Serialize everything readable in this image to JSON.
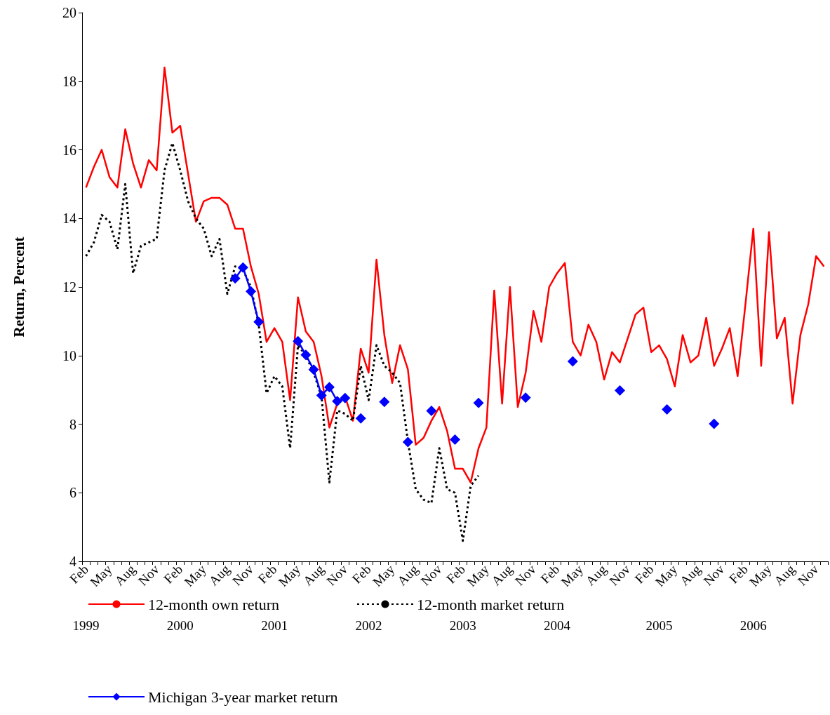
{
  "chart_data": {
    "type": "line",
    "ylabel": "Return, Percent",
    "categories": [
      "Feb",
      null,
      null,
      "May",
      null,
      null,
      "Aug",
      null,
      null,
      "Nov",
      null,
      null,
      "Feb",
      null,
      null,
      "May",
      null,
      null,
      "Aug",
      null,
      null,
      "Nov",
      null,
      null,
      "Feb",
      null,
      null,
      "May",
      null,
      null,
      "Aug",
      null,
      null,
      "Nov",
      null,
      null,
      "Feb",
      null,
      null,
      "May",
      null,
      null,
      "Aug",
      null,
      null,
      "Nov",
      null,
      null,
      "Feb",
      null,
      null,
      "May",
      null,
      null,
      "Aug",
      null,
      null,
      "Nov",
      null,
      null,
      "Feb",
      null,
      null,
      "May",
      null,
      null,
      "Aug",
      null,
      null,
      "Nov",
      null,
      null,
      "Feb",
      null,
      null,
      "May",
      null,
      null,
      "Aug",
      null,
      null,
      "Nov",
      null,
      null,
      "Feb",
      null,
      null,
      "May",
      null,
      null,
      "Aug",
      null,
      null,
      "Nov",
      null
    ],
    "ylim": [
      4,
      20
    ],
    "yticks": [
      4,
      6,
      8,
      10,
      12,
      14,
      16,
      18,
      20
    ],
    "grid": false,
    "legend": "bottom",
    "annotations": [
      "1999",
      "2000",
      "2001",
      "2002",
      "2003",
      "2004",
      "2005",
      "2006"
    ],
    "series": [
      {
        "name": "12-month own return",
        "color": "#ff0000",
        "marker": "none",
        "line_style": "solid",
        "values": [
          14.9,
          15.5,
          16.0,
          15.2,
          14.9,
          16.6,
          15.6,
          14.9,
          15.7,
          15.4,
          18.4,
          16.5,
          16.7,
          15.3,
          13.9,
          14.5,
          14.6,
          14.6,
          14.4,
          13.7,
          13.7,
          12.6,
          11.8,
          10.4,
          10.8,
          10.4,
          8.7,
          11.7,
          10.7,
          10.4,
          9.4,
          7.9,
          8.6,
          8.8,
          8.1,
          10.2,
          9.5,
          12.8,
          10.6,
          9.2,
          10.3,
          9.6,
          7.4,
          7.6,
          8.1,
          8.5,
          7.8,
          6.7,
          6.7,
          6.3,
          7.3,
          7.9,
          11.9,
          8.6,
          12.0,
          8.5,
          9.5,
          11.3,
          10.4,
          12.0,
          12.4,
          12.7,
          10.4,
          10.0,
          10.9,
          10.4,
          9.3,
          10.1,
          9.8,
          10.5,
          11.2,
          11.4,
          10.1,
          10.3,
          9.9,
          9.1,
          10.6,
          9.8,
          10.0,
          11.1,
          9.7,
          10.2,
          10.8,
          9.4,
          11.5,
          13.7,
          9.7,
          13.6,
          10.5,
          11.1,
          8.6,
          10.6,
          11.5,
          12.9,
          12.6
        ]
      },
      {
        "name": "12-month market return",
        "color": "#000000",
        "marker": "none",
        "line_style": "dotted",
        "values": [
          12.9,
          13.3,
          14.1,
          13.9,
          13.1,
          15.0,
          12.4,
          13.2,
          13.3,
          13.4,
          15.4,
          16.2,
          15.4,
          14.5,
          14.0,
          13.7,
          12.9,
          13.4,
          11.8,
          12.6,
          12.5,
          12.0,
          10.9,
          8.9,
          9.4,
          9.1,
          7.3,
          10.3,
          10.0,
          9.5,
          8.8,
          6.3,
          8.4,
          8.3,
          8.1,
          9.7,
          8.7,
          10.3,
          9.7,
          9.5,
          9.2,
          7.5,
          6.1,
          5.8,
          5.7,
          7.3,
          6.1,
          6.0,
          4.6,
          6.2,
          6.5,
          null,
          null,
          null,
          null,
          null,
          null,
          null,
          null,
          null,
          null,
          null,
          null,
          null,
          null,
          null,
          null,
          null,
          null,
          null,
          null,
          null,
          null,
          null,
          null,
          null,
          null,
          null,
          null,
          null,
          null,
          null,
          null,
          null,
          null,
          null,
          null,
          null,
          null,
          null,
          null,
          null,
          null,
          null,
          null
        ]
      },
      {
        "name": "Michigan 3-year market return",
        "color": "#0000ff",
        "marker": "diamond",
        "line_style": "solid",
        "values": [
          null,
          null,
          null,
          null,
          null,
          null,
          null,
          null,
          null,
          null,
          null,
          null,
          null,
          null,
          null,
          null,
          null,
          null,
          null,
          12.25,
          12.57,
          11.87,
          10.98,
          null,
          null,
          null,
          null,
          10.42,
          10.02,
          9.59,
          8.84,
          9.08,
          8.67,
          8.76,
          null,
          8.17,
          null,
          null,
          8.65,
          null,
          null,
          7.48,
          null,
          null,
          8.39,
          null,
          null,
          7.55,
          null,
          null,
          8.62,
          null,
          null,
          null,
          null,
          null,
          8.77,
          null,
          null,
          null,
          null,
          null,
          9.83,
          null,
          null,
          null,
          null,
          null,
          8.98,
          null,
          null,
          null,
          null,
          null,
          8.43,
          null,
          null,
          null,
          null,
          null,
          8.01,
          null,
          null,
          null,
          null,
          null,
          null,
          null,
          null,
          null,
          null,
          null,
          null,
          null,
          null
        ]
      }
    ]
  }
}
